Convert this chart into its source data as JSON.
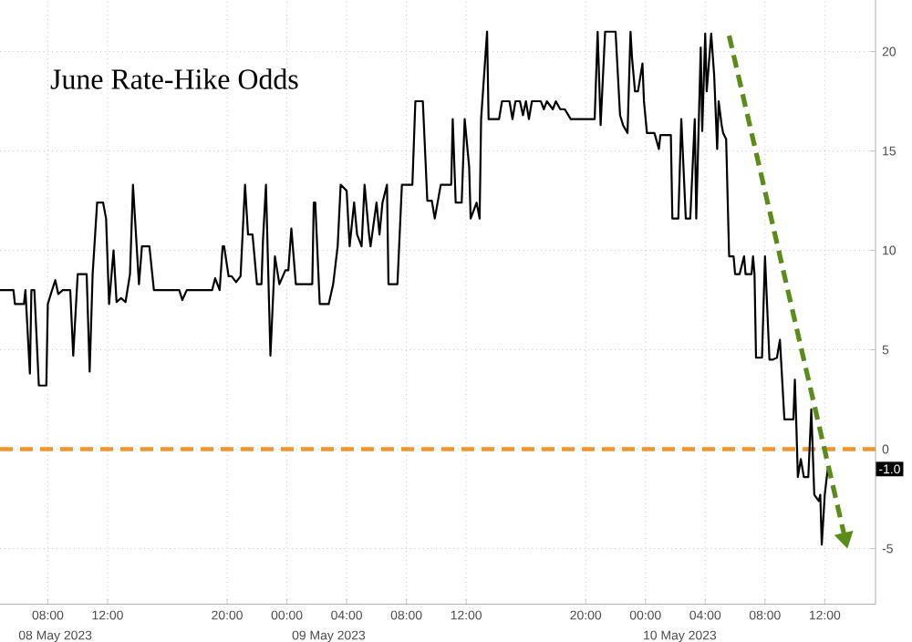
{
  "chart_data": {
    "type": "line",
    "title": "June Rate-Hike Odds",
    "xlim": [
      "2023-05-08T04:48",
      "2023-05-10T15:24"
    ],
    "ylim": [
      -7.8,
      22.75
    ],
    "xticks": [
      {
        "value": "2023-05-08T08:00",
        "label": "08:00"
      },
      {
        "value": "2023-05-08T12:00",
        "label": "12:00"
      },
      {
        "value": "2023-05-08T20:00",
        "label": "20:00"
      },
      {
        "value": "2023-05-09T00:00",
        "label": "00:00"
      },
      {
        "value": "2023-05-09T04:00",
        "label": "04:00"
      },
      {
        "value": "2023-05-09T08:00",
        "label": "08:00"
      },
      {
        "value": "2023-05-09T12:00",
        "label": "12:00"
      },
      {
        "value": "2023-05-09T20:00",
        "label": "20:00"
      },
      {
        "value": "2023-05-10T00:00",
        "label": "00:00"
      },
      {
        "value": "2023-05-10T04:00",
        "label": "04:00"
      },
      {
        "value": "2023-05-10T08:00",
        "label": "08:00"
      },
      {
        "value": "2023-05-10T12:00",
        "label": "12:00"
      }
    ],
    "x2lim": [
      "2023-05-08T04:48",
      "2023-05-10T15:24"
    ],
    "x2ticks": [
      {
        "value": "2023-05-08T08:30",
        "label": "08 May 2023"
      },
      {
        "value": "2023-05-09T02:48",
        "label": "09 May 2023"
      },
      {
        "value": "2023-05-10T02:18",
        "label": "10 May 2023"
      }
    ],
    "yticks": [
      -5,
      0,
      5,
      10,
      15,
      20
    ],
    "grid": true,
    "series": [
      {
        "color": "#000000",
        "line_style": "solid",
        "x": [
          "2023-05-08T04:48",
          "2023-05-08T05:42",
          "2023-05-08T05:48",
          "2023-05-08T06:24",
          "2023-05-08T06:30",
          "2023-05-08T06:48",
          "2023-05-08T06:54",
          "2023-05-08T07:06",
          "2023-05-08T07:24",
          "2023-05-08T07:54",
          "2023-05-08T08:00",
          "2023-05-08T08:12",
          "2023-05-08T08:30",
          "2023-05-08T08:42",
          "2023-05-08T09:00",
          "2023-05-08T09:30",
          "2023-05-08T09:42",
          "2023-05-08T10:00",
          "2023-05-08T10:36",
          "2023-05-08T10:48",
          "2023-05-08T11:00",
          "2023-05-08T11:18",
          "2023-05-08T11:42",
          "2023-05-08T11:54",
          "2023-05-08T12:06",
          "2023-05-08T12:24",
          "2023-05-08T12:36",
          "2023-05-08T12:54",
          "2023-05-08T13:12",
          "2023-05-08T13:30",
          "2023-05-08T13:42",
          "2023-05-08T14:06",
          "2023-05-08T14:18",
          "2023-05-08T14:48",
          "2023-05-08T15:06",
          "2023-05-08T16:48",
          "2023-05-08T17:00",
          "2023-05-08T17:18",
          "2023-05-08T19:00",
          "2023-05-08T19:12",
          "2023-05-08T19:30",
          "2023-05-08T19:42",
          "2023-05-08T19:48",
          "2023-05-08T20:06",
          "2023-05-08T20:18",
          "2023-05-08T20:36",
          "2023-05-08T20:54",
          "2023-05-08T21:12",
          "2023-05-08T21:24",
          "2023-05-08T21:42",
          "2023-05-08T22:00",
          "2023-05-08T22:18",
          "2023-05-08T22:24",
          "2023-05-08T22:36",
          "2023-05-08T22:54",
          "2023-05-08T23:12",
          "2023-05-08T23:30",
          "2023-05-08T23:54",
          "2023-05-09T00:06",
          "2023-05-09T00:18",
          "2023-05-09T00:36",
          "2023-05-09T01:42",
          "2023-05-09T01:48",
          "2023-05-09T01:54",
          "2023-05-09T02:12",
          "2023-05-09T02:48",
          "2023-05-09T03:06",
          "2023-05-09T03:24",
          "2023-05-09T03:36",
          "2023-05-09T04:00",
          "2023-05-09T04:12",
          "2023-05-09T04:30",
          "2023-05-09T04:42",
          "2023-05-09T05:00",
          "2023-05-09T05:12",
          "2023-05-09T05:30",
          "2023-05-09T05:36",
          "2023-05-09T06:00",
          "2023-05-09T06:12",
          "2023-05-09T06:24",
          "2023-05-09T06:42",
          "2023-05-09T06:48",
          "2023-05-09T07:24",
          "2023-05-09T07:42",
          "2023-05-09T08:24",
          "2023-05-09T08:36",
          "2023-05-09T09:06",
          "2023-05-09T09:24",
          "2023-05-09T09:42",
          "2023-05-09T09:54",
          "2023-05-09T10:18",
          "2023-05-09T11:00",
          "2023-05-09T11:06",
          "2023-05-09T11:18",
          "2023-05-09T11:42",
          "2023-05-09T11:54",
          "2023-05-09T12:12",
          "2023-05-09T12:18",
          "2023-05-09T12:42",
          "2023-05-09T12:54",
          "2023-05-09T13:00",
          "2023-05-09T13:24",
          "2023-05-09T13:30",
          "2023-05-09T14:12",
          "2023-05-09T14:24",
          "2023-05-09T14:54",
          "2023-05-09T15:06",
          "2023-05-09T15:18",
          "2023-05-09T15:36",
          "2023-05-09T15:48",
          "2023-05-09T16:00",
          "2023-05-09T16:12",
          "2023-05-09T16:24",
          "2023-05-09T17:00",
          "2023-05-09T17:12",
          "2023-05-09T17:24",
          "2023-05-09T17:48",
          "2023-05-09T18:00",
          "2023-05-09T18:18",
          "2023-05-09T18:36",
          "2023-05-09T19:00",
          "2023-05-09T20:36",
          "2023-05-09T20:48",
          "2023-05-09T21:00",
          "2023-05-09T21:18",
          "2023-05-09T22:00",
          "2023-05-09T22:18",
          "2023-05-09T22:30",
          "2023-05-09T22:48",
          "2023-05-09T23:00",
          "2023-05-09T23:06",
          "2023-05-09T23:18",
          "2023-05-09T23:30",
          "2023-05-09T23:48",
          "2023-05-09T23:54",
          "2023-05-10T00:06",
          "2023-05-10T00:36",
          "2023-05-10T00:54",
          "2023-05-10T01:00",
          "2023-05-10T01:42",
          "2023-05-10T01:48",
          "2023-05-10T02:12",
          "2023-05-10T02:24",
          "2023-05-10T02:42",
          "2023-05-10T03:00",
          "2023-05-10T03:18",
          "2023-05-10T03:24",
          "2023-05-10T03:42",
          "2023-05-10T03:48",
          "2023-05-10T04:00",
          "2023-05-10T04:06",
          "2023-05-10T04:24",
          "2023-05-10T04:36",
          "2023-05-10T04:48",
          "2023-05-10T04:54",
          "2023-05-10T05:06",
          "2023-05-10T05:12",
          "2023-05-10T05:24",
          "2023-05-10T05:36",
          "2023-05-10T05:54",
          "2023-05-10T06:00",
          "2023-05-10T06:18",
          "2023-05-10T06:36",
          "2023-05-10T06:42",
          "2023-05-10T07:06",
          "2023-05-10T07:12",
          "2023-05-10T07:18",
          "2023-05-10T07:24",
          "2023-05-10T07:48",
          "2023-05-10T08:00",
          "2023-05-10T08:18",
          "2023-05-10T08:30",
          "2023-05-10T08:48",
          "2023-05-10T09:00",
          "2023-05-10T09:18",
          "2023-05-10T09:54",
          "2023-05-10T10:00",
          "2023-05-10T10:06",
          "2023-05-10T10:12",
          "2023-05-10T10:24",
          "2023-05-10T10:36",
          "2023-05-10T10:54",
          "2023-05-10T11:06",
          "2023-05-10T11:18",
          "2023-05-10T11:36",
          "2023-05-10T11:42",
          "2023-05-10T11:48",
          "2023-05-10T12:00",
          "2023-05-10T12:12"
        ],
        "values": [
          8.0,
          8.0,
          7.3,
          7.3,
          8.0,
          3.8,
          8.0,
          8.0,
          3.2,
          3.2,
          7.3,
          7.8,
          8.5,
          7.8,
          8.0,
          8.0,
          4.7,
          8.8,
          8.8,
          3.9,
          8.8,
          12.4,
          12.4,
          11.6,
          7.3,
          10.0,
          7.4,
          7.6,
          7.4,
          8.8,
          13.3,
          8.3,
          10.2,
          10.2,
          8.0,
          8.0,
          7.5,
          8.0,
          8.0,
          8.6,
          8.0,
          10.2,
          10.2,
          8.7,
          8.7,
          8.4,
          8.7,
          13.3,
          10.8,
          10.8,
          8.3,
          8.3,
          10.5,
          13.3,
          4.7,
          9.7,
          8.3,
          9.0,
          9.0,
          11.1,
          8.3,
          8.3,
          12.4,
          12.4,
          7.3,
          7.3,
          8.3,
          10.2,
          13.3,
          13.0,
          10.2,
          12.4,
          10.8,
          10.2,
          13.3,
          10.8,
          10.2,
          12.4,
          10.8,
          12.4,
          13.3,
          8.3,
          8.3,
          13.3,
          13.3,
          17.5,
          17.5,
          12.5,
          12.5,
          11.6,
          13.3,
          13.3,
          16.6,
          12.4,
          12.4,
          16.6,
          14.2,
          11.6,
          12.4,
          11.6,
          16.6,
          21.0,
          16.6,
          16.6,
          17.5,
          17.5,
          16.6,
          17.5,
          17.5,
          16.8,
          17.5,
          16.6,
          17.5,
          17.5,
          17.1,
          17.5,
          17.1,
          17.5,
          17.1,
          17.1,
          16.6,
          16.6,
          21.0,
          16.3,
          21.0,
          21.0,
          16.8,
          16.3,
          15.9,
          21.0,
          19.7,
          18.0,
          18.0,
          19.4,
          17.5,
          15.9,
          15.9,
          15.1,
          15.8,
          15.8,
          11.6,
          11.6,
          16.6,
          11.6,
          11.6,
          16.6,
          11.6,
          20.2,
          16.0,
          20.9,
          18.0,
          20.9,
          18.8,
          15.1,
          17.5,
          16.3,
          15.9,
          15.6,
          9.7,
          9.7,
          8.8,
          8.8,
          9.7,
          8.8,
          8.8,
          9.7,
          8.8,
          4.6,
          4.6,
          9.7,
          4.5,
          4.5,
          4.6,
          5.5,
          1.5,
          1.5,
          3.5,
          1.2,
          -1.4,
          -0.5,
          -1.4,
          -1.4,
          2.0,
          -2.3,
          -2.6,
          -2.3,
          -4.8,
          -2.3,
          -1.0
        ]
      },
      {
        "type": "line",
        "color": "#5b8c1a",
        "line_style": "dashed",
        "x": [
          "2023-05-10T05:36",
          "2023-05-10T13:18"
        ],
        "values": [
          20.8,
          -4.3
        ]
      }
    ],
    "ref_lines": [
      {
        "axis": "y",
        "value": 0,
        "color": "#f0962e",
        "line_style": "dashed"
      }
    ],
    "annotations": [
      "-1.0"
    ]
  }
}
